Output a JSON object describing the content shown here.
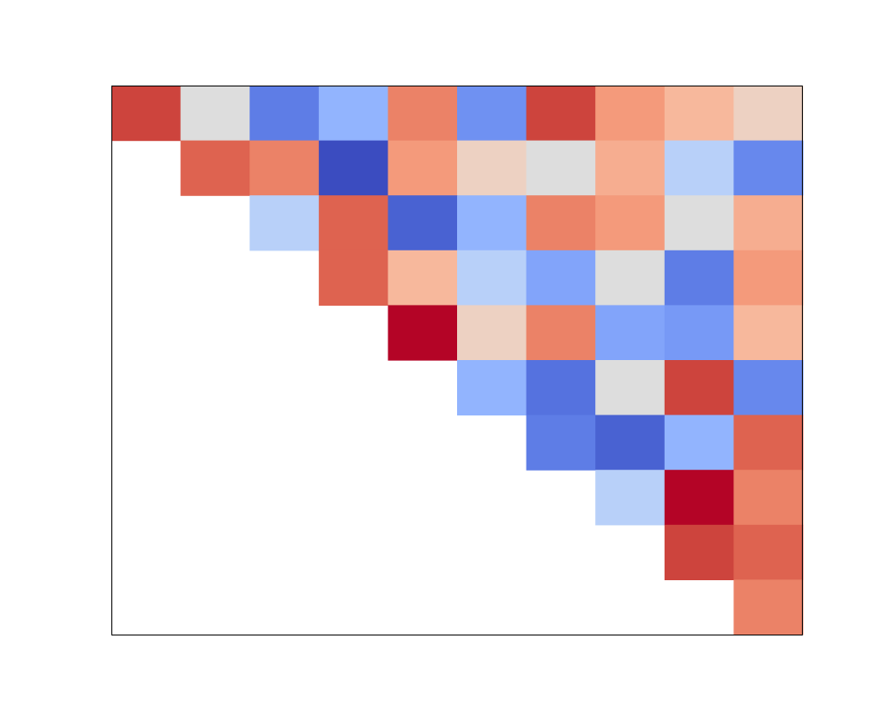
{
  "chart_data": {
    "type": "heatmap",
    "title": "",
    "xlabel": "",
    "ylabel": "",
    "rows": 10,
    "cols": 10,
    "colormap": "coolwarm",
    "value_range": [
      0,
      1
    ],
    "axes_visible": false,
    "frame_visible": true,
    "masked_lower_triangle": true,
    "values": [
      [
        0.9,
        0.5,
        0.18,
        0.38,
        0.75,
        0.25,
        0.9,
        0.7,
        0.62,
        0.55
      ],
      [
        null,
        0.82,
        0.75,
        0.0,
        0.7,
        0.55,
        0.5,
        0.65,
        0.45,
        0.22
      ],
      [
        null,
        null,
        0.45,
        0.82,
        0.08,
        0.38,
        0.75,
        0.7,
        0.5,
        0.65
      ],
      [
        null,
        null,
        null,
        0.82,
        0.62,
        0.45,
        0.32,
        0.5,
        0.18,
        0.7
      ],
      [
        null,
        null,
        null,
        null,
        1.0,
        0.55,
        0.75,
        0.32,
        0.28,
        0.62
      ],
      [
        null,
        null,
        null,
        null,
        null,
        0.38,
        0.14,
        0.5,
        0.9,
        0.22
      ],
      [
        null,
        null,
        null,
        null,
        null,
        null,
        0.18,
        0.08,
        0.38,
        0.82
      ],
      [
        null,
        null,
        null,
        null,
        null,
        null,
        null,
        0.45,
        1.0,
        0.75
      ],
      [
        null,
        null,
        null,
        null,
        null,
        null,
        null,
        null,
        0.9,
        0.82
      ],
      [
        null,
        null,
        null,
        null,
        null,
        null,
        null,
        null,
        null,
        0.75
      ]
    ],
    "colors": {
      "frame": "#000000",
      "background": "#ffffff",
      "masked": "#ffffff"
    }
  }
}
